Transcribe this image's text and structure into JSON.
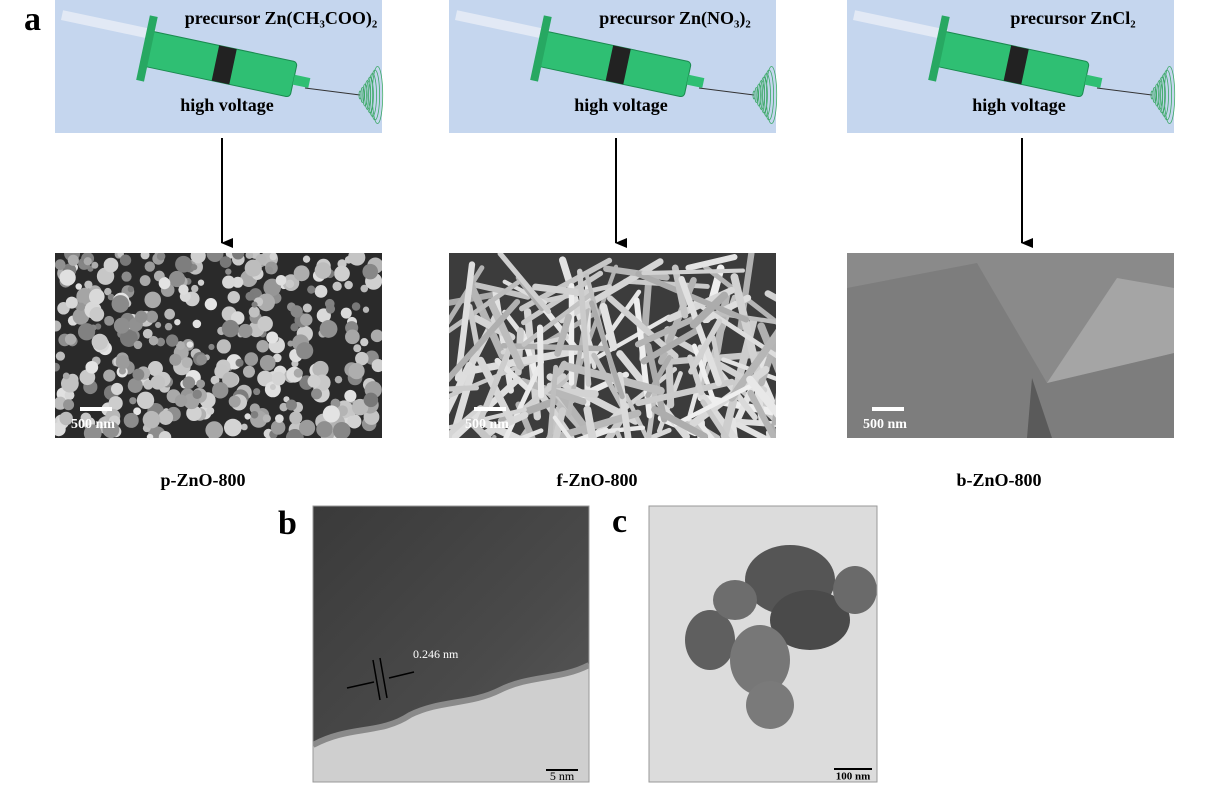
{
  "panel_a": {
    "label": "a",
    "columns": [
      {
        "precursor": "precursor Zn(CH₃COO)₂",
        "process": "high voltage",
        "scale_bar": "500 nm",
        "sample": "p-ZnO-800"
      },
      {
        "precursor": "precursor Zn(NO₃)₂",
        "process": "high voltage",
        "scale_bar": "500 nm",
        "sample": "f-ZnO-800"
      },
      {
        "precursor": "precursor ZnCl₂",
        "process": "high voltage",
        "scale_bar": "500 nm",
        "sample": "b-ZnO-800"
      }
    ]
  },
  "panel_b": {
    "label": "b",
    "lattice_spacing": "0.246 nm",
    "scale_bar": "5 nm"
  },
  "panel_c": {
    "label": "c",
    "scale_bar": "100 nm"
  }
}
